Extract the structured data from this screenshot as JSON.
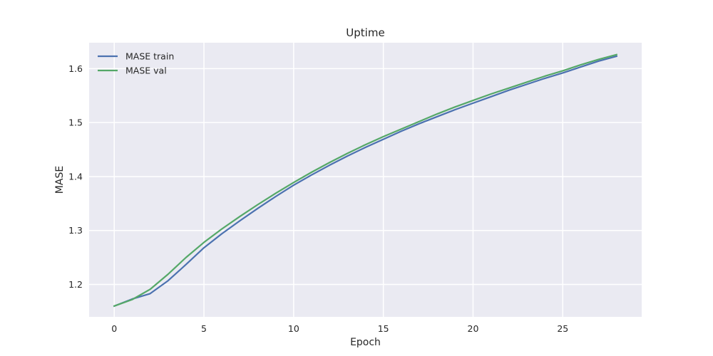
{
  "chart_data": {
    "type": "line",
    "title": "Uptime",
    "xlabel": "Epoch",
    "ylabel": "MASE",
    "xlim": [
      -1.4,
      29.4
    ],
    "ylim": [
      1.14,
      1.648
    ],
    "xticks": [
      0,
      5,
      10,
      15,
      20,
      25
    ],
    "yticks": [
      1.2,
      1.3,
      1.4,
      1.5,
      1.6
    ],
    "ytick_labels": [
      "1.2",
      "1.3",
      "1.4",
      "1.5",
      "1.6"
    ],
    "grid": true,
    "legend_position": "top-left",
    "x": [
      0,
      1,
      2,
      3,
      4,
      5,
      6,
      7,
      8,
      9,
      10,
      11,
      12,
      13,
      14,
      15,
      16,
      17,
      18,
      19,
      20,
      21,
      22,
      23,
      24,
      25,
      26,
      27,
      28
    ],
    "series": [
      {
        "name": "MASE train",
        "color": "#4c72b0",
        "values": [
          1.16,
          1.173,
          1.183,
          1.207,
          1.237,
          1.268,
          1.294,
          1.318,
          1.341,
          1.363,
          1.384,
          1.403,
          1.421,
          1.438,
          1.454,
          1.469,
          1.484,
          1.498,
          1.511,
          1.524,
          1.536,
          1.548,
          1.56,
          1.571,
          1.582,
          1.592,
          1.603,
          1.614,
          1.623
        ]
      },
      {
        "name": "MASE val",
        "color": "#55a868",
        "values": [
          1.16,
          1.172,
          1.191,
          1.219,
          1.25,
          1.278,
          1.303,
          1.326,
          1.348,
          1.369,
          1.389,
          1.408,
          1.426,
          1.443,
          1.459,
          1.474,
          1.488,
          1.502,
          1.516,
          1.529,
          1.541,
          1.553,
          1.564,
          1.575,
          1.586,
          1.596,
          1.607,
          1.617,
          1.626
        ]
      }
    ]
  }
}
